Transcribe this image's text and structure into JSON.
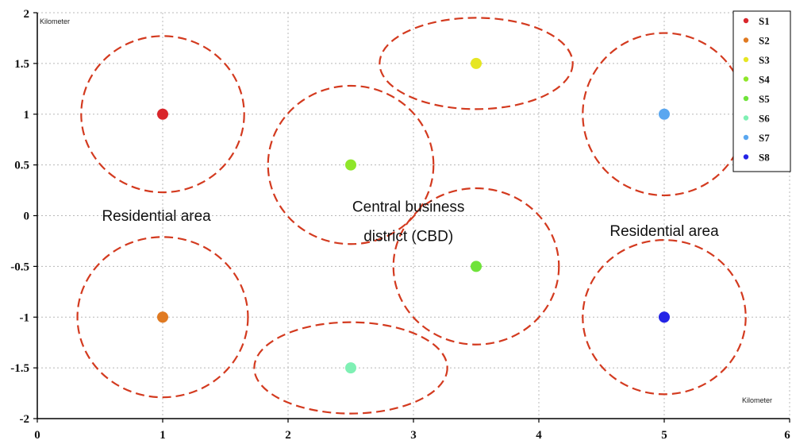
{
  "chart_data": {
    "type": "scatter",
    "xlim": [
      0,
      6
    ],
    "ylim": [
      -2,
      2
    ],
    "x_ticks": [
      "0",
      "1",
      "2",
      "3",
      "4",
      "5",
      "6"
    ],
    "y_ticks": [
      "2",
      "1.5",
      "1",
      "0.5",
      "0",
      "-0.5",
      "-1",
      "-1.5",
      "-2"
    ],
    "x_unit": "Kilometer",
    "y_unit": "Kilometer",
    "grid": true,
    "legend_position": "top-right",
    "series": [
      {
        "name": "S1",
        "x": 1.0,
        "y": 1.0,
        "color": "#d9262b"
      },
      {
        "name": "S2",
        "x": 1.0,
        "y": -1.0,
        "color": "#e07a22"
      },
      {
        "name": "S3",
        "x": 3.5,
        "y": 1.5,
        "color": "#e6e623"
      },
      {
        "name": "S4",
        "x": 2.5,
        "y": 0.5,
        "color": "#8fe62a"
      },
      {
        "name": "S5",
        "x": 3.5,
        "y": -0.5,
        "color": "#6fe33a"
      },
      {
        "name": "S6",
        "x": 2.5,
        "y": -1.5,
        "color": "#7ff0b4"
      },
      {
        "name": "S7",
        "x": 5.0,
        "y": 1.0,
        "color": "#5aa7f0"
      },
      {
        "name": "S8",
        "x": 5.0,
        "y": -1.0,
        "color": "#2424e6"
      }
    ],
    "coverage_regions": [
      {
        "cx": 1.0,
        "cy": 1.0,
        "rx": 0.65,
        "ry": 0.77
      },
      {
        "cx": 1.0,
        "cy": -1.0,
        "rx": 0.68,
        "ry": 0.79
      },
      {
        "cx": 3.5,
        "cy": 1.5,
        "rx": 0.77,
        "ry": 0.45
      },
      {
        "cx": 2.5,
        "cy": 0.5,
        "rx": 0.66,
        "ry": 0.78
      },
      {
        "cx": 3.5,
        "cy": -0.5,
        "rx": 0.66,
        "ry": 0.77
      },
      {
        "cx": 2.5,
        "cy": -1.5,
        "rx": 0.77,
        "ry": 0.45
      },
      {
        "cx": 5.0,
        "cy": 1.0,
        "rx": 0.65,
        "ry": 0.8
      },
      {
        "cx": 5.0,
        "cy": -1.0,
        "rx": 0.65,
        "ry": 0.76
      }
    ],
    "circle_color": "#d33a1f",
    "annotations": [
      {
        "text": "Residential area",
        "x": 0.95,
        "y": -0.05
      },
      {
        "text": "Central business",
        "x": 2.96,
        "y": 0.04
      },
      {
        "text": "district (CBD)",
        "x": 2.96,
        "y": -0.25
      },
      {
        "text": "Residential area",
        "x": 5.0,
        "y": -0.2
      }
    ]
  }
}
